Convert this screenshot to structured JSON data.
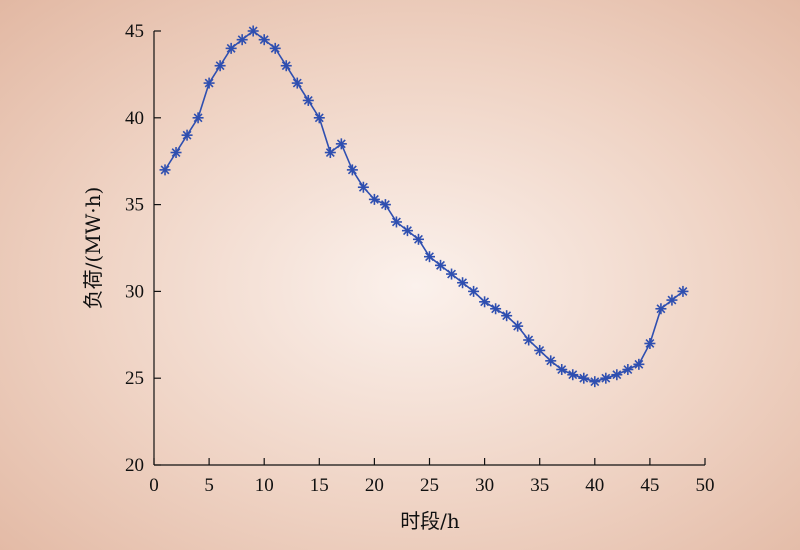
{
  "chart_data": {
    "type": "line",
    "title": "",
    "xlabel": "时段/h",
    "ylabel": "负荷/(MW·h)",
    "xlim": [
      0,
      50
    ],
    "ylim": [
      20,
      45
    ],
    "xticks": [
      "0",
      "5",
      "10",
      "15",
      "20",
      "25",
      "30",
      "35",
      "40",
      "45",
      "50"
    ],
    "yticks": [
      "20",
      "25",
      "30",
      "35",
      "40",
      "45"
    ],
    "grid": false,
    "legend": "none",
    "series": [
      {
        "marker": "asterisk",
        "color": "#2f4fb0",
        "x": [
          1,
          2,
          3,
          4,
          5,
          6,
          7,
          8,
          9,
          10,
          11,
          12,
          13,
          14,
          15,
          16,
          17,
          18,
          19,
          20,
          21,
          22,
          23,
          24,
          25,
          26,
          27,
          28,
          29,
          30,
          31,
          32,
          33,
          34,
          35,
          36,
          37,
          38,
          39,
          40,
          41,
          42,
          43,
          44,
          45,
          46,
          47,
          48
        ],
        "y": [
          37,
          38,
          39,
          40,
          42,
          43,
          44,
          44.5,
          45,
          44.5,
          44,
          43,
          42,
          41,
          40,
          38,
          38.5,
          37,
          36,
          35.3,
          35,
          34,
          33.5,
          33,
          32,
          31.5,
          31,
          30.5,
          30,
          29.4,
          29,
          28.6,
          28,
          27.2,
          26.6,
          26,
          25.5,
          25.2,
          25,
          24.8,
          25,
          25.2,
          25.5,
          25.8,
          27,
          29,
          29.5,
          30
        ]
      }
    ]
  }
}
